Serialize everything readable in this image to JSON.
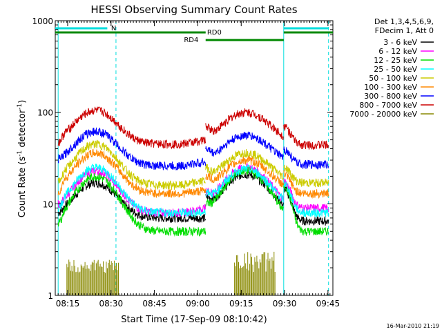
{
  "chart_data": {
    "type": "line",
    "title": "HESSI Observing Summary Count Rates",
    "xlabel": "Start Time (17-Sep-09 08:10:42)",
    "ylabel": "Count Rate (s",
    "ylabel_parts": [
      "Count Rate (s",
      "-1",
      " detector",
      "-1",
      ")"
    ],
    "yscale": "log",
    "ylim": [
      1,
      1000
    ],
    "xlim_minutes": [
      0,
      96
    ],
    "x_ticks": [
      {
        "label": "08:15",
        "t": 4.3
      },
      {
        "label": "08:30",
        "t": 19.3
      },
      {
        "label": "08:45",
        "t": 34.3
      },
      {
        "label": "09:00",
        "t": 49.3
      },
      {
        "label": "09:15",
        "t": 64.3
      },
      {
        "label": "09:30",
        "t": 79.3
      },
      {
        "label": "09:45",
        "t": 94.3
      }
    ],
    "y_ticks": [
      {
        "label": "1",
        "v": 1
      },
      {
        "label": "10",
        "v": 10
      },
      {
        "label": "100",
        "v": 100
      },
      {
        "label": "1000",
        "v": 1000
      }
    ],
    "legend_header": [
      "Det 1,3,4,5,6,9,",
      "FDecim 1, Att 0"
    ],
    "series": [
      {
        "name": "3 - 6 keV",
        "color": "#000000",
        "values": [
          8,
          17,
          7,
          7,
          21,
          6.5
        ]
      },
      {
        "name": "6 - 12 keV",
        "color": "#ff00ff",
        "values": [
          10,
          23,
          8,
          9,
          25,
          9
        ]
      },
      {
        "name": "12 - 25 keV",
        "color": "#00dd00",
        "values": [
          6,
          20,
          5,
          5,
          23,
          5
        ]
      },
      {
        "name": "25 - 50 keV",
        "color": "#00ffff",
        "values": [
          9,
          25,
          8,
          8,
          24,
          8
        ]
      },
      {
        "name": "50 - 100 keV",
        "color": "#cccc00",
        "values": [
          17,
          45,
          16,
          18,
          36,
          17
        ]
      },
      {
        "name": "100 - 300 keV",
        "color": "#ff8800",
        "values": [
          13,
          36,
          13,
          14,
          30,
          13
        ]
      },
      {
        "name": "300 - 800 keV",
        "color": "#0000ff",
        "values": [
          31,
          62,
          26,
          29,
          56,
          27
        ]
      },
      {
        "name": "800 - 7000 keV",
        "color": "#cc0000",
        "values": [
          46,
          105,
          45,
          50,
          100,
          44
        ]
      },
      {
        "name": "7000 - 20000 keV",
        "color": "#888800",
        "values": [
          2,
          2.5,
          1,
          1,
          3,
          1
        ]
      }
    ],
    "annotations": [
      {
        "text": "N",
        "color": "#00dddd"
      },
      {
        "text": "RD0",
        "color": "#008800"
      },
      {
        "text": "RD4",
        "color": "#008800"
      }
    ],
    "footer_date": "16-Mar-2010 21:19"
  }
}
